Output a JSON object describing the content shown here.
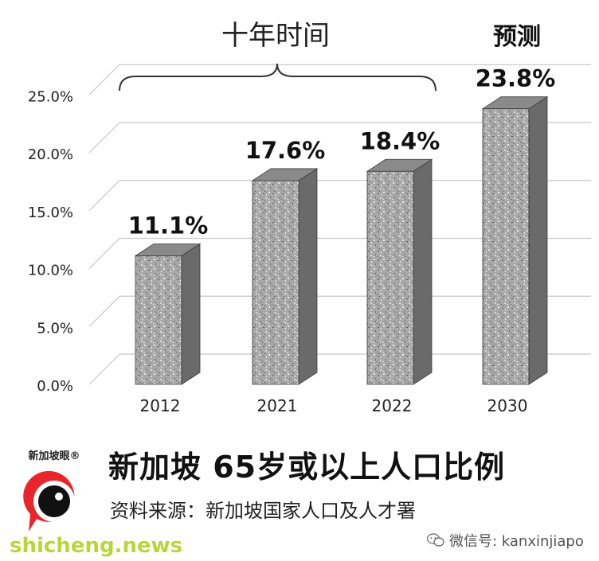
{
  "chart_data": {
    "type": "bar",
    "categories": [
      "2012",
      "2021",
      "2022",
      "2030"
    ],
    "values": [
      11.1,
      17.6,
      18.4,
      23.8
    ],
    "data_labels": [
      "11.1%",
      "17.6%",
      "18.4%",
      "23.8%"
    ],
    "y_ticks": [
      "0.0%",
      "5.0%",
      "10.0%",
      "15.0%",
      "20.0%",
      "25.0%"
    ],
    "ylim": [
      0,
      25
    ],
    "grid": true,
    "bracket_label": "十年时间",
    "forecast_label": "预测",
    "bar_color": "#9a9a9a"
  },
  "footer": {
    "title": "新加坡 65岁或以上人口比例",
    "source": "资料来源：新加坡国家人口及人才署"
  },
  "logo": {
    "text": "新加坡眼®",
    "color": "#e8262a"
  },
  "wechat": "微信号: kanxinjiapo",
  "watermark": "shicheng.news"
}
